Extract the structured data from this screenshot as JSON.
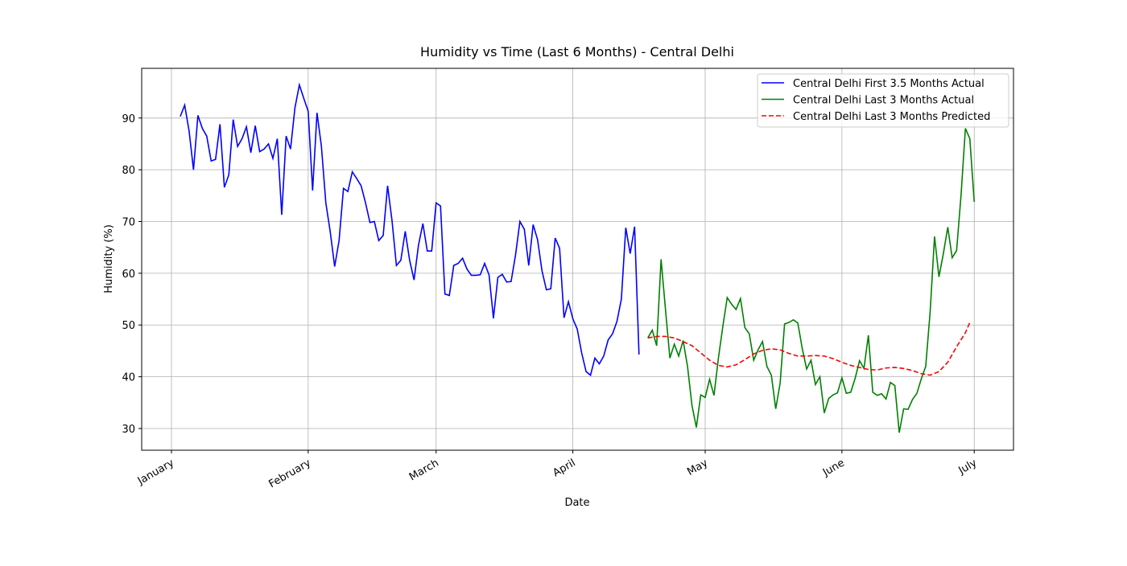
{
  "chart_data": {
    "type": "line",
    "title": "Humidity vs Time (Last 6 Months) - Central Delhi",
    "xlabel": "Date",
    "ylabel": "Humidity (%)",
    "xlim": [
      -6.75,
      190.9
    ],
    "ylim": [
      25.8,
      99.6
    ],
    "xticks": [
      {
        "value": 0,
        "label": "January"
      },
      {
        "value": 31,
        "label": "February"
      },
      {
        "value": 60,
        "label": "March"
      },
      {
        "value": 91,
        "label": "April"
      },
      {
        "value": 121,
        "label": "May"
      },
      {
        "value": 152,
        "label": "June"
      },
      {
        "value": 182,
        "label": "July"
      }
    ],
    "yticks": [
      30,
      40,
      50,
      60,
      70,
      80,
      90
    ],
    "grid": true,
    "legend": "upper right",
    "series": [
      {
        "name": "Central Delhi First 3.5 Months Actual",
        "color": "#0000ff",
        "linestyle": "solid",
        "x": [
          2,
          3,
          4,
          5,
          6,
          7,
          8,
          9,
          10,
          11,
          12,
          13,
          14,
          15,
          16,
          17,
          18,
          19,
          20,
          21,
          22,
          23,
          24,
          25,
          26,
          27,
          28,
          29,
          30,
          31,
          32,
          33,
          34,
          35,
          36,
          37,
          38,
          39,
          40,
          41,
          42,
          43,
          44,
          45,
          46,
          47,
          48,
          49,
          50,
          51,
          52,
          53,
          54,
          55,
          56,
          57,
          58,
          59,
          60,
          61,
          62,
          63,
          64,
          65,
          66,
          67,
          68,
          69,
          70,
          71,
          72,
          73,
          74,
          75,
          76,
          77,
          78,
          79,
          80,
          81,
          82,
          83,
          84,
          85,
          86,
          87,
          88,
          89,
          90,
          91,
          92,
          93,
          94,
          95,
          96,
          97,
          98,
          99,
          100,
          101,
          102,
          103,
          104,
          105,
          106
        ],
        "values": [
          90.3,
          92.5,
          87.5,
          80,
          90.5,
          88,
          86.5,
          81.7,
          82,
          88.8,
          76.6,
          79,
          89.7,
          84.5,
          86,
          88.3,
          83.3,
          88.5,
          83.5,
          84,
          85,
          82.2,
          86,
          71.3,
          86.5,
          84,
          92,
          96.4,
          93.8,
          91.3,
          76,
          91,
          84.5,
          73.6,
          68,
          61.3,
          66.3,
          76.4,
          75.8,
          79.6,
          78.3,
          76.9,
          73.6,
          69.8,
          70,
          66.3,
          67.3,
          76.9,
          70.2,
          61.5,
          62.5,
          68.1,
          62.5,
          58.7,
          65.4,
          69.6,
          64.3,
          64.3,
          73.6,
          73,
          56,
          55.7,
          61.5,
          61.9,
          62.9,
          60.8,
          59.6,
          59.6,
          59.7,
          61.9,
          59.7,
          51.3,
          59.2,
          59.8,
          58.3,
          58.4,
          63.5,
          70,
          68.5,
          61.5,
          69.4,
          66.5,
          60.5,
          56.8,
          57,
          66.8,
          64.8,
          51.4,
          54.5,
          51.2,
          49.2,
          44.6,
          41,
          40.3,
          43.6,
          42.5,
          44,
          47.1,
          48.3,
          50.7,
          55,
          68.8,
          63.8,
          69,
          44.3
        ]
      },
      {
        "name": "Central Delhi Last 3 Months Actual",
        "color": "#008000",
        "linestyle": "solid",
        "x": [
          108,
          109,
          110,
          111,
          112,
          113,
          114,
          115,
          116,
          117,
          118,
          119,
          120,
          121,
          122,
          123,
          124,
          125,
          126,
          127,
          128,
          129,
          130,
          131,
          132,
          133,
          134,
          135,
          136,
          137,
          138,
          139,
          140,
          141,
          142,
          143,
          144,
          145,
          146,
          147,
          148,
          149,
          150,
          151,
          152,
          153,
          154,
          155,
          156,
          157,
          158,
          159,
          160,
          161,
          162,
          163,
          164,
          165,
          166,
          167,
          168,
          169,
          170,
          171,
          172,
          173,
          174,
          175,
          176,
          177,
          178,
          179,
          180,
          181,
          182
        ],
        "values": [
          47.5,
          49,
          46,
          62.7,
          53,
          43.6,
          46.3,
          44,
          47,
          42,
          34.5,
          30.2,
          36.5,
          36,
          39.5,
          36.4,
          43.6,
          49.7,
          55.3,
          54,
          53,
          55.1,
          49.5,
          48.3,
          43.2,
          45.2,
          46.8,
          42,
          40.3,
          33.8,
          38.8,
          50.2,
          50.5,
          51,
          50.4,
          45.5,
          41.5,
          43.2,
          38.5,
          40,
          33,
          35.8,
          36.5,
          36.9,
          39.8,
          36.8,
          37,
          39.7,
          43.1,
          41.6,
          48,
          37,
          36.4,
          36.7,
          35.7,
          38.9,
          38.3,
          29.2,
          33.8,
          33.7,
          35.6,
          36.8,
          39.6,
          42,
          52.5,
          67.1,
          59.3,
          63.8,
          68.9,
          63,
          64.4,
          75,
          88,
          86,
          73.8
        ]
      },
      {
        "name": "Central Delhi Last 3 Months Predicted",
        "color": "#ff0000",
        "linestyle": "dashed",
        "x": [
          108,
          110,
          112,
          114,
          116,
          118,
          120,
          122,
          124,
          126,
          128,
          130,
          132,
          134,
          136,
          138,
          140,
          142,
          144,
          146,
          148,
          150,
          152,
          154,
          156,
          158,
          160,
          162,
          164,
          166,
          168,
          170,
          172,
          174,
          176,
          178,
          180,
          181
        ],
        "values": [
          47.5,
          47.8,
          47.8,
          47.5,
          46.8,
          46,
          44.6,
          43.2,
          42.2,
          41.9,
          42.3,
          43.3,
          44.4,
          45.1,
          45.4,
          45.2,
          44.5,
          44,
          44,
          44.1,
          44,
          43.5,
          42.8,
          42.2,
          41.8,
          41.4,
          41.3,
          41.7,
          41.8,
          41.6,
          41.2,
          40.6,
          40.3,
          41,
          42.8,
          45.8,
          48.5,
          50.5
        ]
      }
    ]
  }
}
